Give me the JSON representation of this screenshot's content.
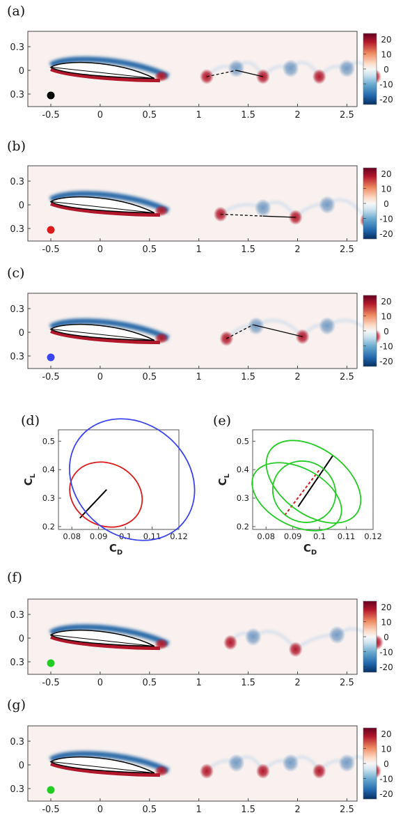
{
  "figure": {
    "colors": {
      "cmap_neg": "#2c6aa8",
      "cmap_pos": "#b2182b",
      "black": "#000000",
      "red": "#dd1a1a",
      "blue": "#3a44f0",
      "green": "#22cc22"
    }
  },
  "chart_data": [
    {
      "panel": "(a)",
      "type": "heatmap",
      "xticks": [
        "-0.5",
        "0",
        "0.5",
        "1",
        "1.5",
        "2",
        "2.5"
      ],
      "yticks": [
        "0.3",
        "0",
        "0.3"
      ],
      "colorbar_ticks": [
        "20",
        "10",
        "0",
        "-10",
        "-20"
      ],
      "marker_color": "black",
      "vortices": [
        {
          "x": 1.08,
          "y": -0.1,
          "sign": 1
        },
        {
          "x": 1.38,
          "y": 0.03,
          "sign": -1
        },
        {
          "x": 1.65,
          "y": -0.1,
          "sign": 1
        },
        {
          "x": 1.93,
          "y": 0.03,
          "sign": -1
        },
        {
          "x": 2.22,
          "y": -0.1,
          "sign": 1
        },
        {
          "x": 2.5,
          "y": 0.03,
          "sign": -1
        },
        {
          "x": 2.78,
          "y": -0.1,
          "sign": 1
        }
      ],
      "track": {
        "dashed": [
          [
            1.08,
            -0.1
          ],
          [
            1.38,
            0.0
          ]
        ],
        "solid": [
          [
            1.38,
            0.0
          ],
          [
            1.65,
            -0.1
          ]
        ]
      }
    },
    {
      "panel": "(b)",
      "type": "heatmap",
      "xticks": [
        "-0.5",
        "0",
        "0.5",
        "1",
        "1.5",
        "2",
        "2.5"
      ],
      "yticks": [
        "0.3",
        "0",
        "0.3"
      ],
      "colorbar_ticks": [
        "20",
        "10",
        "0",
        "-10",
        "-20"
      ],
      "marker_color": "red",
      "vortices": [
        {
          "x": 1.22,
          "y": -0.15,
          "sign": 1
        },
        {
          "x": 1.65,
          "y": -0.05,
          "sign": -1
        },
        {
          "x": 1.98,
          "y": -0.2,
          "sign": 1
        },
        {
          "x": 2.3,
          "y": 0.0,
          "sign": -1
        },
        {
          "x": 2.7,
          "y": -0.25,
          "sign": 1
        }
      ],
      "track": {
        "dashed": [
          [
            1.22,
            -0.15
          ],
          [
            1.65,
            -0.18
          ]
        ],
        "solid": [
          [
            1.65,
            -0.18
          ],
          [
            1.98,
            -0.2
          ]
        ]
      }
    },
    {
      "panel": "(c)",
      "type": "heatmap",
      "xticks": [
        "-0.5",
        "0",
        "0.5",
        "1",
        "1.5",
        "2",
        "2.5"
      ],
      "yticks": [
        "0.3",
        "0",
        "0.3"
      ],
      "colorbar_ticks": [
        "20",
        "10",
        "0",
        "-10",
        "-20"
      ],
      "marker_color": "blue",
      "vortices": [
        {
          "x": 1.28,
          "y": -0.1,
          "sign": 1
        },
        {
          "x": 1.58,
          "y": 0.1,
          "sign": -1
        },
        {
          "x": 2.05,
          "y": -0.07,
          "sign": 1
        },
        {
          "x": 2.3,
          "y": 0.1,
          "sign": -1
        },
        {
          "x": 2.78,
          "y": -0.07,
          "sign": 1
        }
      ],
      "track": {
        "dashed": [
          [
            1.28,
            -0.1
          ],
          [
            1.55,
            0.12
          ]
        ],
        "solid": [
          [
            1.55,
            0.12
          ],
          [
            2.05,
            -0.07
          ]
        ]
      }
    },
    {
      "panel": "(d)",
      "type": "line",
      "xlabel": "C",
      "xlabel_sub": "D",
      "ylabel": "C",
      "ylabel_sub": "L",
      "xlim": [
        0.075,
        0.12
      ],
      "ylim": [
        0.19,
        0.54
      ],
      "xticks": [
        "0.08",
        "0.09",
        "0.1",
        "0.11",
        "0.12"
      ],
      "yticks": [
        "0.5",
        "0.4",
        "0.3",
        "0.2"
      ],
      "series": [
        {
          "color": "black",
          "points": [
            [
              0.083,
              0.23
            ],
            [
              0.093,
              0.33
            ]
          ]
        },
        {
          "color": "red",
          "ellipse": {
            "p1": [
              0.0875,
              0.215
            ],
            "p2": [
              0.098,
              0.41
            ],
            "half_width": 0.014
          }
        },
        {
          "color": "blue",
          "ellipse": {
            "p1": [
              0.089,
              0.215
            ],
            "p2": [
              0.116,
              0.515
            ],
            "half_width": 0.025
          }
        }
      ]
    },
    {
      "panel": "(e)",
      "type": "line",
      "xlabel": "C",
      "xlabel_sub": "D",
      "ylabel": "C",
      "ylabel_sub": "L",
      "xlim": [
        0.075,
        0.12
      ],
      "ylim": [
        0.19,
        0.54
      ],
      "xticks": [
        "0.08",
        "0.09",
        "0.1",
        "0.11",
        "0.12"
      ],
      "yticks": [
        "0.5",
        "0.4",
        "0.3",
        "0.2"
      ],
      "series": [
        {
          "color": "black",
          "points": [
            [
              0.092,
              0.27
            ],
            [
              0.105,
              0.45
            ]
          ]
        },
        {
          "color": "red",
          "dashed": true,
          "points": [
            [
              0.087,
              0.24
            ],
            [
              0.1,
              0.4
            ]
          ]
        },
        {
          "color": "green",
          "ellipse": {
            "p1": [
              0.0865,
              0.215
            ],
            "p2": [
              0.0965,
              0.395
            ],
            "half_width": 0.018
          }
        },
        {
          "color": "green",
          "ellipse": {
            "p1": [
              0.0905,
              0.265
            ],
            "p2": [
              0.105,
              0.45
            ],
            "half_width": 0.02
          }
        },
        {
          "color": "green",
          "ellipse": {
            "p1": [
              0.088,
              0.235
            ],
            "p2": [
              0.1005,
              0.41
            ],
            "half_width": 0.012
          }
        }
      ]
    },
    {
      "panel": "(f)",
      "type": "heatmap",
      "xticks": [
        "-0.5",
        "0",
        "0.5",
        "1",
        "1.5",
        "2",
        "2.5"
      ],
      "yticks": [
        "0.3",
        "0",
        "0.3"
      ],
      "colorbar_ticks": [
        "20",
        "10",
        "0",
        "-10",
        "-20"
      ],
      "marker_color": "green",
      "vortices": [
        {
          "x": 1.32,
          "y": -0.07,
          "sign": 1
        },
        {
          "x": 1.55,
          "y": 0.02,
          "sign": -1
        },
        {
          "x": 1.98,
          "y": -0.18,
          "sign": 1
        },
        {
          "x": 2.4,
          "y": 0.05,
          "sign": -1
        },
        {
          "x": 2.8,
          "y": -0.07,
          "sign": 1
        }
      ],
      "track": null
    },
    {
      "panel": "(g)",
      "type": "heatmap",
      "xticks": [
        "-0.5",
        "0",
        "0.5",
        "1",
        "1.5",
        "2",
        "2.5"
      ],
      "yticks": [
        "0.3",
        "0",
        "0.3"
      ],
      "colorbar_ticks": [
        "20",
        "10",
        "0",
        "-10",
        "-20"
      ],
      "marker_color": "green",
      "vortices": [
        {
          "x": 1.08,
          "y": -0.1,
          "sign": 1
        },
        {
          "x": 1.38,
          "y": 0.03,
          "sign": -1
        },
        {
          "x": 1.65,
          "y": -0.1,
          "sign": 1
        },
        {
          "x": 1.93,
          "y": 0.03,
          "sign": -1
        },
        {
          "x": 2.22,
          "y": -0.1,
          "sign": 1
        },
        {
          "x": 2.5,
          "y": 0.03,
          "sign": -1
        },
        {
          "x": 2.78,
          "y": -0.1,
          "sign": 1
        }
      ],
      "track": null
    }
  ]
}
